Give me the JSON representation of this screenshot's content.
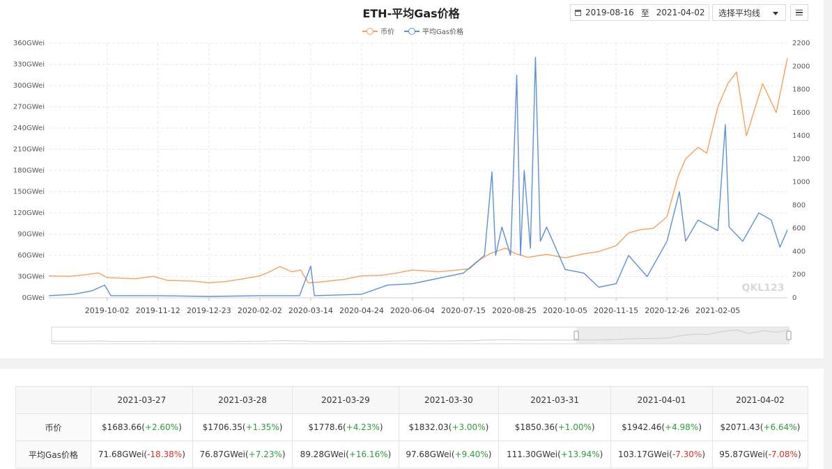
{
  "header": {
    "title": "ETH-平均Gas价格",
    "date_start": "2019-08-16",
    "date_sep": "至",
    "date_end": "2021-04-02",
    "select_label": "选择平均线",
    "watermark": "QKL123"
  },
  "legend": [
    {
      "name": "币价",
      "color": "#f5a15a"
    },
    {
      "name": "平均Gas价格",
      "color": "#5b8fd9"
    }
  ],
  "chart_data": {
    "type": "line",
    "title": "ETH-平均Gas价格",
    "x_ticks": [
      "2019-10-02",
      "2019-11-12",
      "2019-12-23",
      "2020-02-02",
      "2020-03-14",
      "2020-04-24",
      "2020-06-04",
      "2020-07-15",
      "2020-08-25",
      "2020-10-05",
      "2020-11-15",
      "2020-12-26",
      "2021-02-05"
    ],
    "x_range": [
      "2019-08-16",
      "2021-04-02"
    ],
    "y_left": {
      "ticks": [
        "0GWei",
        "30GWei",
        "60GWei",
        "90GWei",
        "120GWei",
        "150GWei",
        "180GWei",
        "210GWei",
        "240GWei",
        "270GWei",
        "300GWei",
        "330GWei",
        "360GWei"
      ],
      "range": [
        0,
        360
      ]
    },
    "y_right": {
      "ticks": [
        "0",
        "200",
        "400",
        "600",
        "800",
        "1000",
        "1200",
        "1400",
        "1600",
        "1800",
        "2000",
        "2200"
      ],
      "range": [
        0,
        2200
      ]
    },
    "grid": true,
    "legend_position": "top-center",
    "series": [
      {
        "name": "币价",
        "axis": "right",
        "color": "#f5a15a",
        "points": [
          [
            "2019-08-16",
            190
          ],
          [
            "2019-09-01",
            185
          ],
          [
            "2019-09-15",
            200
          ],
          [
            "2019-09-25",
            215
          ],
          [
            "2019-10-02",
            175
          ],
          [
            "2019-10-25",
            165
          ],
          [
            "2019-11-08",
            185
          ],
          [
            "2019-11-20",
            150
          ],
          [
            "2019-12-10",
            145
          ],
          [
            "2019-12-23",
            130
          ],
          [
            "2020-01-05",
            140
          ],
          [
            "2020-01-20",
            165
          ],
          [
            "2020-02-02",
            190
          ],
          [
            "2020-02-10",
            225
          ],
          [
            "2020-02-18",
            270
          ],
          [
            "2020-02-28",
            225
          ],
          [
            "2020-03-06",
            240
          ],
          [
            "2020-03-12",
            130
          ],
          [
            "2020-03-20",
            135
          ],
          [
            "2020-04-10",
            160
          ],
          [
            "2020-04-24",
            190
          ],
          [
            "2020-05-10",
            195
          ],
          [
            "2020-05-20",
            210
          ],
          [
            "2020-06-04",
            240
          ],
          [
            "2020-06-25",
            225
          ],
          [
            "2020-07-10",
            240
          ],
          [
            "2020-07-20",
            250
          ],
          [
            "2020-07-27",
            320
          ],
          [
            "2020-08-05",
            380
          ],
          [
            "2020-08-18",
            430
          ],
          [
            "2020-08-25",
            385
          ],
          [
            "2020-09-05",
            350
          ],
          [
            "2020-09-20",
            375
          ],
          [
            "2020-10-05",
            345
          ],
          [
            "2020-10-20",
            380
          ],
          [
            "2020-11-01",
            400
          ],
          [
            "2020-11-15",
            450
          ],
          [
            "2020-11-25",
            560
          ],
          [
            "2020-12-05",
            590
          ],
          [
            "2020-12-15",
            600
          ],
          [
            "2020-12-26",
            700
          ],
          [
            "2021-01-04",
            1050
          ],
          [
            "2021-01-10",
            1200
          ],
          [
            "2021-01-20",
            1300
          ],
          [
            "2021-01-27",
            1250
          ],
          [
            "2021-02-05",
            1650
          ],
          [
            "2021-02-13",
            1850
          ],
          [
            "2021-02-20",
            1950
          ],
          [
            "2021-02-28",
            1400
          ],
          [
            "2021-03-13",
            1850
          ],
          [
            "2021-03-24",
            1600
          ],
          [
            "2021-04-02",
            2071
          ]
        ]
      },
      {
        "name": "平均Gas价格",
        "axis": "left",
        "color": "#5b8fd9",
        "points": [
          [
            "2019-08-16",
            3
          ],
          [
            "2019-09-05",
            5
          ],
          [
            "2019-09-20",
            10
          ],
          [
            "2019-09-30",
            18
          ],
          [
            "2019-10-05",
            3
          ],
          [
            "2019-11-12",
            3
          ],
          [
            "2019-12-23",
            2
          ],
          [
            "2020-02-02",
            3
          ],
          [
            "2020-03-05",
            3
          ],
          [
            "2020-03-14",
            45
          ],
          [
            "2020-03-17",
            3
          ],
          [
            "2020-04-24",
            5
          ],
          [
            "2020-05-15",
            18
          ],
          [
            "2020-06-04",
            20
          ],
          [
            "2020-07-15",
            35
          ],
          [
            "2020-08-01",
            60
          ],
          [
            "2020-08-07",
            178
          ],
          [
            "2020-08-10",
            60
          ],
          [
            "2020-08-15",
            100
          ],
          [
            "2020-08-22",
            60
          ],
          [
            "2020-08-27",
            315
          ],
          [
            "2020-08-30",
            60
          ],
          [
            "2020-09-02",
            180
          ],
          [
            "2020-09-07",
            70
          ],
          [
            "2020-09-11",
            340
          ],
          [
            "2020-09-15",
            80
          ],
          [
            "2020-09-20",
            100
          ],
          [
            "2020-10-05",
            40
          ],
          [
            "2020-10-20",
            35
          ],
          [
            "2020-11-01",
            15
          ],
          [
            "2020-11-15",
            20
          ],
          [
            "2020-11-25",
            60
          ],
          [
            "2020-12-10",
            30
          ],
          [
            "2020-12-26",
            80
          ],
          [
            "2021-01-05",
            150
          ],
          [
            "2021-01-10",
            80
          ],
          [
            "2021-01-20",
            110
          ],
          [
            "2021-02-05",
            95
          ],
          [
            "2021-02-11",
            245
          ],
          [
            "2021-02-14",
            100
          ],
          [
            "2021-02-25",
            80
          ],
          [
            "2021-03-10",
            120
          ],
          [
            "2021-03-20",
            110
          ],
          [
            "2021-03-27",
            71.68
          ],
          [
            "2021-04-02",
            95.87
          ]
        ]
      }
    ]
  },
  "table": {
    "dates": [
      "2021-03-27",
      "2021-03-28",
      "2021-03-29",
      "2021-03-30",
      "2021-03-31",
      "2021-04-01",
      "2021-04-02"
    ],
    "rows": [
      {
        "label": "币价",
        "cells": [
          {
            "value": "$1683.66",
            "change": "+2.60%",
            "dir": "up"
          },
          {
            "value": "$1706.35",
            "change": "+1.35%",
            "dir": "up"
          },
          {
            "value": "$1778.6",
            "change": "+4.23%",
            "dir": "up"
          },
          {
            "value": "$1832.03",
            "change": "+3.00%",
            "dir": "up"
          },
          {
            "value": "$1850.36",
            "change": "+1.00%",
            "dir": "up"
          },
          {
            "value": "$1942.46",
            "change": "+4.98%",
            "dir": "up"
          },
          {
            "value": "$2071.43",
            "change": "+6.64%",
            "dir": "up"
          }
        ]
      },
      {
        "label": "平均Gas价格",
        "cells": [
          {
            "value": "71.68GWei",
            "change": "-18.38%",
            "dir": "down"
          },
          {
            "value": "76.87GWei",
            "change": "+7.23%",
            "dir": "up"
          },
          {
            "value": "89.28GWei",
            "change": "+16.16%",
            "dir": "up"
          },
          {
            "value": "97.68GWei",
            "change": "+9.40%",
            "dir": "up"
          },
          {
            "value": "111.30GWei",
            "change": "+13.94%",
            "dir": "up"
          },
          {
            "value": "103.17GWei",
            "change": "-7.30%",
            "dir": "down"
          },
          {
            "value": "95.87GWei",
            "change": "-7.08%",
            "dir": "down"
          }
        ]
      }
    ]
  }
}
